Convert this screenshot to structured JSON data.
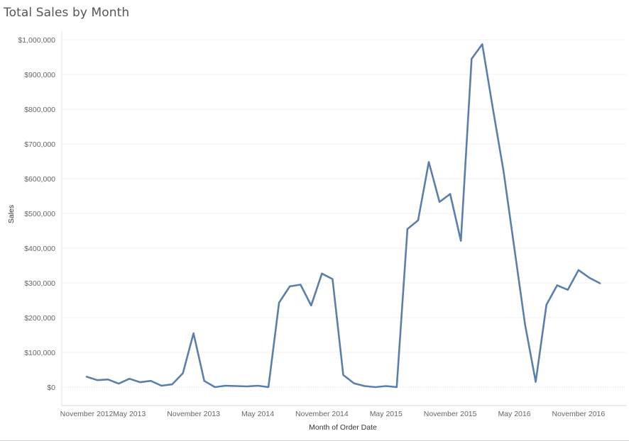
{
  "chart_data": {
    "type": "line",
    "title": "Total Sales by Month",
    "xlabel": "Month of Order Date",
    "ylabel": "Sales",
    "ylim": [
      -50000,
      1000000
    ],
    "y_ticks": [
      "$0",
      "$100,000",
      "$200,000",
      "$300,000",
      "$400,000",
      "$500,000",
      "$600,000",
      "$700,000",
      "$800,000",
      "$900,000",
      "$1,000,000"
    ],
    "x_ticks": [
      {
        "label": "November 2012",
        "index": 0
      },
      {
        "label": "May 2013",
        "index": 4
      },
      {
        "label": "November 2013",
        "index": 10
      },
      {
        "label": "May 2014",
        "index": 16
      },
      {
        "label": "November 2014",
        "index": 22
      },
      {
        "label": "May 2015",
        "index": 28
      },
      {
        "label": "November 2015",
        "index": 34
      },
      {
        "label": "May 2016",
        "index": 40
      },
      {
        "label": "November 2016",
        "index": 46
      }
    ],
    "grid": true,
    "line_color": "#5b7fad",
    "series": [
      {
        "values": [
          30000,
          20000,
          22000,
          10000,
          24000,
          14000,
          18000,
          4000,
          8000,
          40000,
          155000,
          18000,
          0,
          4000,
          3000,
          2000,
          4000,
          0,
          243000,
          290000,
          295000,
          235000,
          327000,
          311000,
          35000,
          11000,
          3000,
          0,
          3000,
          0,
          455000,
          480000,
          648000,
          533000,
          556000,
          421000,
          945000,
          987000,
          800000,
          620000,
          400000,
          180000,
          15000,
          237000,
          293000,
          280000,
          337000,
          315000,
          299000
        ]
      }
    ]
  }
}
